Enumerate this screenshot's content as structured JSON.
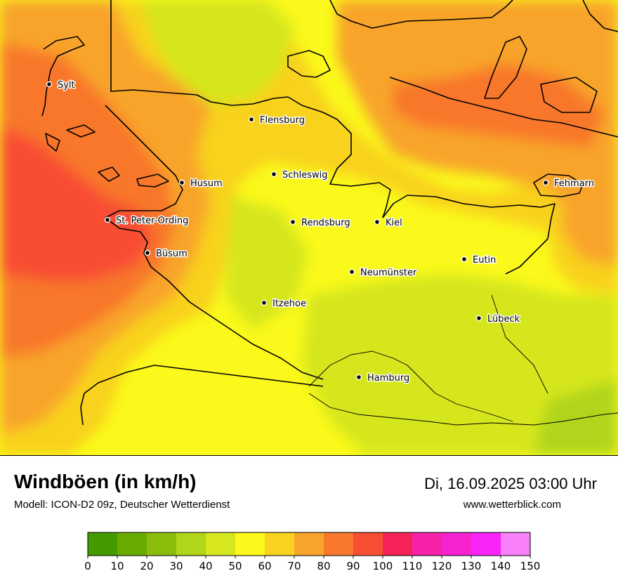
{
  "header": {
    "title": "Windböen (in km/h)",
    "subtitle": "Modell: ICON-D2 09z, Deutscher Wetterdienst",
    "datetime": "Di, 16.09.2025 03:00 Uhr",
    "website": "www.wetterblick.com"
  },
  "cities": [
    {
      "name": "Sylt"
    },
    {
      "name": "Flensburg"
    },
    {
      "name": "Schleswig"
    },
    {
      "name": "Husum"
    },
    {
      "name": "St. Peter-Ording"
    },
    {
      "name": "Rendsburg"
    },
    {
      "name": "Kiel"
    },
    {
      "name": "Fehmarn"
    },
    {
      "name": "Büsum"
    },
    {
      "name": "Eutin"
    },
    {
      "name": "Neumünster"
    },
    {
      "name": "Itzehoe"
    },
    {
      "name": "Lübeck"
    },
    {
      "name": "Hamburg"
    }
  ],
  "legend": {
    "ticks": [
      "0",
      "10",
      "20",
      "30",
      "40",
      "50",
      "60",
      "70",
      "80",
      "90",
      "100",
      "110",
      "120",
      "130",
      "140",
      "150"
    ],
    "colors": [
      "#459a00",
      "#69ac00",
      "#8abd0a",
      "#b0d51a",
      "#d6e61f",
      "#faf91b",
      "#f8d21f",
      "#f8a42b",
      "#f8772c",
      "#f84e33",
      "#f72259",
      "#f822a8",
      "#f823d0",
      "#f824f8",
      "#f880f8"
    ]
  }
}
